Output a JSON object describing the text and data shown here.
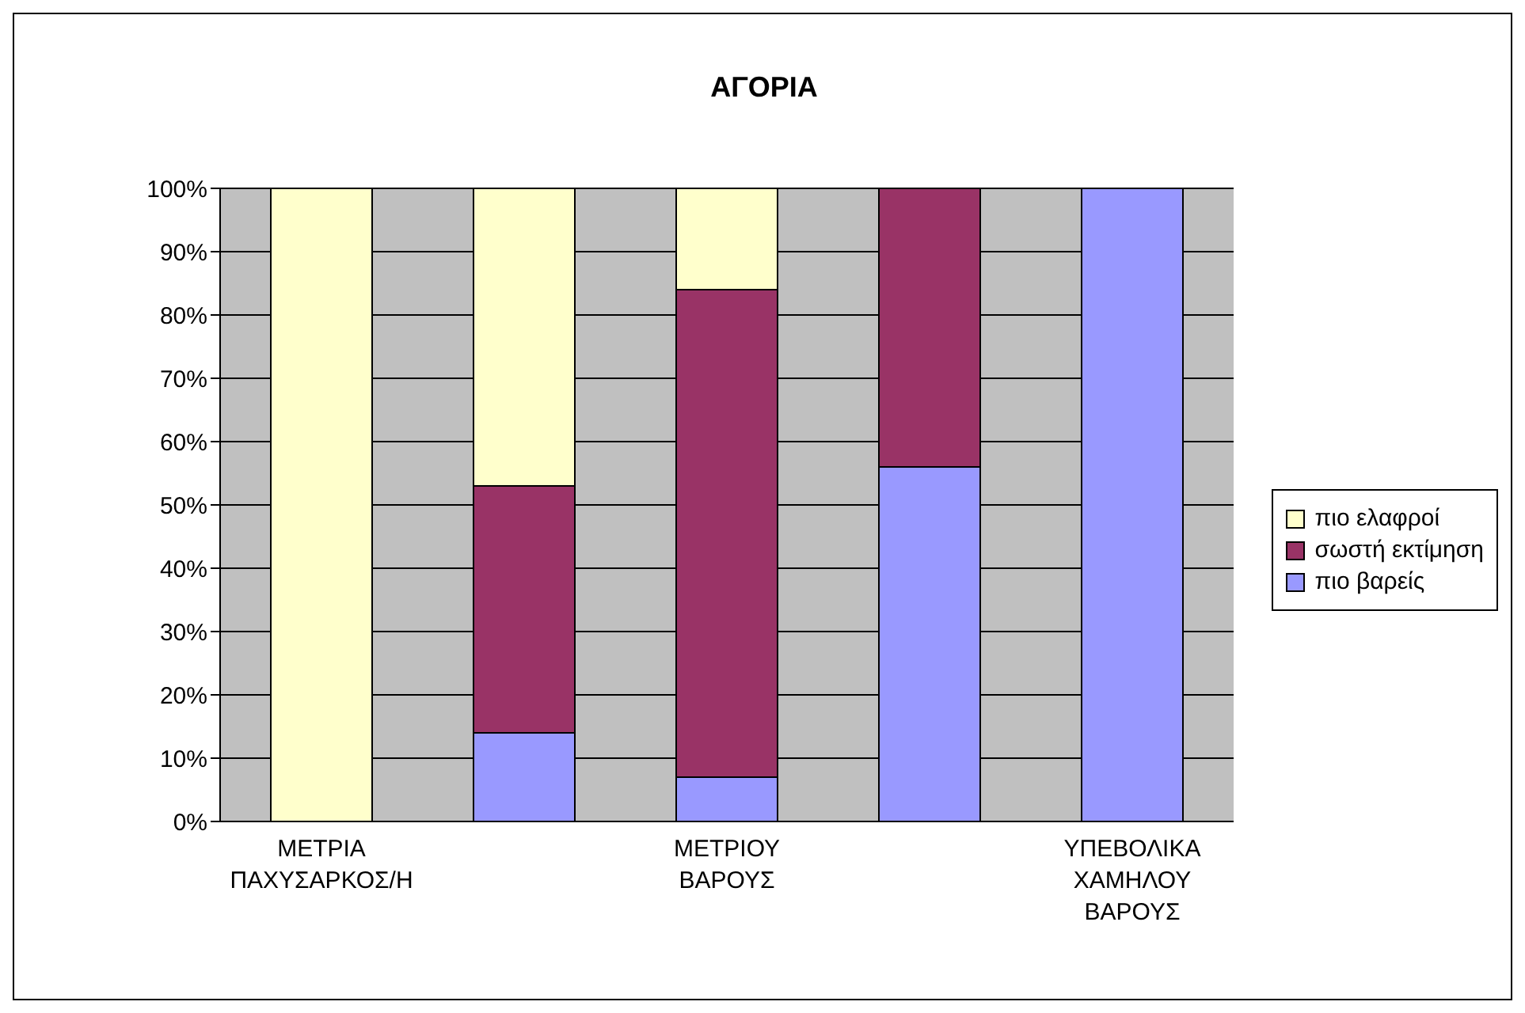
{
  "chart_data": {
    "type": "bar",
    "title": "ΑΓΟΡΙΑ",
    "stacked": true,
    "categories": [
      "ΜΕΤΡΙΑ ΠΑΧΥΣΑΡΚΟΣ/Η",
      null,
      "ΜΕΤΡΙΟΥ ΒΑΡΟΥΣ",
      null,
      "ΥΠΕΒΟΛΙΚΑ ΧΑΜΗΛΟΥ ΒΑΡΟΥΣ"
    ],
    "series": [
      {
        "name": "πιο βαρείς",
        "color": "#9999ff",
        "values": [
          0,
          14,
          7,
          56,
          100
        ]
      },
      {
        "name": "σωστή εκτίμηση",
        "color": "#993366",
        "values": [
          0,
          39,
          77,
          44,
          0
        ]
      },
      {
        "name": "πιο ελαφροί",
        "color": "#ffffcc",
        "values": [
          100,
          47,
          16,
          0,
          0
        ]
      }
    ],
    "ylim": [
      0,
      100
    ],
    "yticks": [
      {
        "value": 0,
        "label": "0%"
      },
      {
        "value": 10,
        "label": "10%"
      },
      {
        "value": 20,
        "label": "20%"
      },
      {
        "value": 30,
        "label": "30%"
      },
      {
        "value": 40,
        "label": "40%"
      },
      {
        "value": 50,
        "label": "50%"
      },
      {
        "value": 60,
        "label": "60%"
      },
      {
        "value": 70,
        "label": "70%"
      },
      {
        "value": 80,
        "label": "80%"
      },
      {
        "value": 90,
        "label": "90%"
      },
      {
        "value": 100,
        "label": "100%"
      }
    ],
    "grid": "y",
    "legend": "right"
  }
}
